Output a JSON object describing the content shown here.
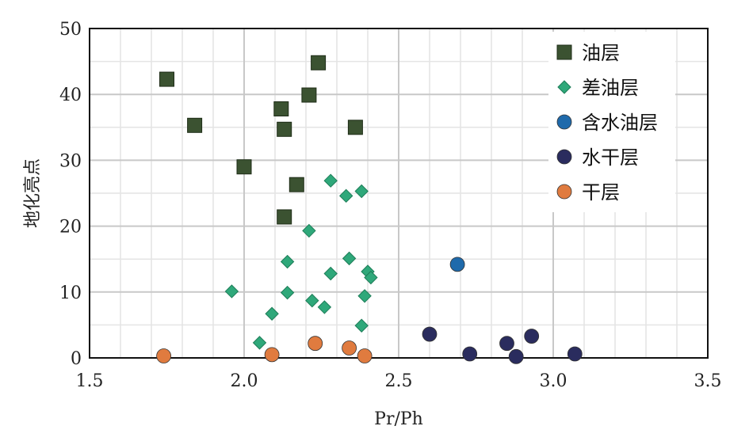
{
  "chart_data": {
    "type": "scatter",
    "xlabel": "Pr/Ph",
    "ylabel": "地化亮点",
    "xlim": [
      1.5,
      3.5
    ],
    "ylim": [
      0,
      50
    ],
    "x_ticks": [
      1.5,
      2.0,
      2.5,
      3.0,
      3.5
    ],
    "x_tick_labels": [
      "1.5",
      "2.0",
      "2.5",
      "3.0",
      "3.5"
    ],
    "y_ticks": [
      0,
      10,
      20,
      30,
      40,
      50
    ],
    "y_tick_labels": [
      "0",
      "10",
      "20",
      "30",
      "40",
      "50"
    ],
    "grid": true,
    "legend_position": "top-right",
    "series": [
      {
        "name": "油层",
        "marker": "square",
        "color": "#3b5231",
        "points": [
          [
            1.75,
            42.3
          ],
          [
            1.84,
            35.3
          ],
          [
            2.0,
            29.0
          ],
          [
            2.12,
            37.8
          ],
          [
            2.13,
            34.7
          ],
          [
            2.13,
            21.4
          ],
          [
            2.17,
            26.3
          ],
          [
            2.21,
            39.9
          ],
          [
            2.24,
            44.8
          ],
          [
            2.36,
            35.0
          ]
        ]
      },
      {
        "name": "差油层",
        "marker": "diamond",
        "color": "#2fa87a",
        "points": [
          [
            1.96,
            10.1
          ],
          [
            2.05,
            2.3
          ],
          [
            2.09,
            6.7
          ],
          [
            2.14,
            9.9
          ],
          [
            2.14,
            14.6
          ],
          [
            2.21,
            19.3
          ],
          [
            2.22,
            8.7
          ],
          [
            2.26,
            7.7
          ],
          [
            2.28,
            12.8
          ],
          [
            2.28,
            26.9
          ],
          [
            2.33,
            24.6
          ],
          [
            2.34,
            15.1
          ],
          [
            2.38,
            4.9
          ],
          [
            2.38,
            25.3
          ],
          [
            2.39,
            9.4
          ],
          [
            2.4,
            13.1
          ],
          [
            2.41,
            12.2
          ]
        ]
      },
      {
        "name": "含水油层",
        "marker": "circle",
        "color": "#1f6aab",
        "points": [
          [
            2.69,
            14.2
          ]
        ]
      },
      {
        "name": "水干层",
        "marker": "circle",
        "color": "#2a2c5e",
        "points": [
          [
            2.6,
            3.6
          ],
          [
            2.73,
            0.6
          ],
          [
            2.85,
            2.2
          ],
          [
            2.88,
            0.2
          ],
          [
            2.93,
            3.3
          ],
          [
            3.07,
            0.6
          ]
        ]
      },
      {
        "name": "干层",
        "marker": "circle",
        "color": "#e07b3f",
        "points": [
          [
            1.74,
            0.3
          ],
          [
            2.09,
            0.5
          ],
          [
            2.23,
            2.2
          ],
          [
            2.34,
            1.5
          ],
          [
            2.39,
            0.3
          ]
        ]
      }
    ]
  }
}
